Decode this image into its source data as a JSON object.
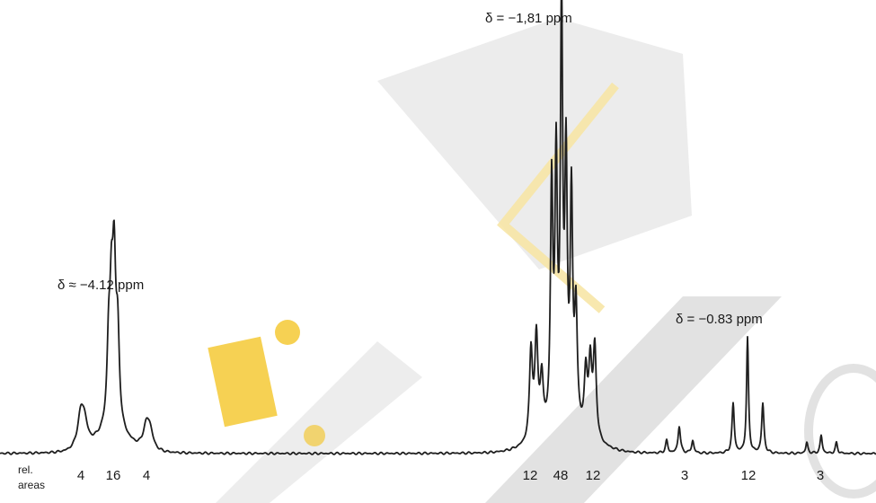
{
  "colors": {
    "trace": "#1e1e1e",
    "text": "#1a1a1a",
    "watermark_gray": "#d9d9d9",
    "watermark_dark": "#cfcfcf",
    "watermark_yellow": "#f3c21a",
    "watermark_light_yellow": "#f7e6a6"
  },
  "chart_data": {
    "type": "line",
    "title": "",
    "xlabel": "",
    "ylabel": "",
    "peak_labels": [
      {
        "text": "δ ≈ −4.12 ppm",
        "shift": -4.12
      },
      {
        "text": "δ = −1,81 ppm",
        "shift": -1.81
      },
      {
        "text": "δ = −0.83 ppm",
        "shift": -0.83
      }
    ],
    "areas_title": [
      "rel.",
      "areas"
    ],
    "rel_areas": [
      {
        "text": "4",
        "value": 4
      },
      {
        "text": "16",
        "value": 16
      },
      {
        "text": "4",
        "value": 4
      },
      {
        "text": "12",
        "value": 12
      },
      {
        "text": "48",
        "value": 48
      },
      {
        "text": "12",
        "value": 12
      },
      {
        "text": "3",
        "value": 3
      },
      {
        "text": "12",
        "value": 12
      },
      {
        "text": "3",
        "value": 3
      }
    ]
  }
}
